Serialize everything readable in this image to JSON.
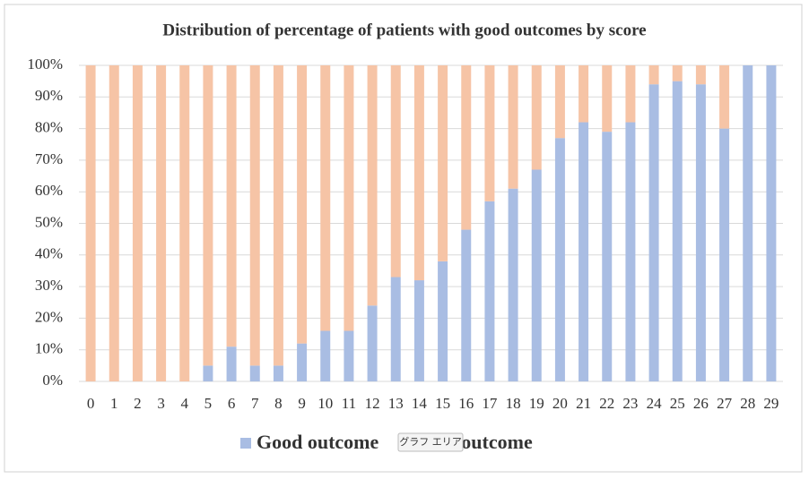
{
  "chart_data": {
    "type": "stacked_bar_percent",
    "title": "Distribution of percentage of patients with good outcomes by score",
    "categories": [
      "0",
      "1",
      "2",
      "3",
      "4",
      "5",
      "6",
      "7",
      "8",
      "9",
      "10",
      "11",
      "12",
      "13",
      "14",
      "15",
      "16",
      "17",
      "18",
      "19",
      "20",
      "21",
      "22",
      "23",
      "24",
      "25",
      "26",
      "27",
      "28",
      "29"
    ],
    "series": [
      {
        "name": "Good outcome",
        "color": "#a9bde3",
        "values": [
          0,
          0,
          0,
          0,
          0,
          5,
          11,
          5,
          5,
          12,
          16,
          16,
          24,
          33,
          32,
          38,
          48,
          57,
          61,
          67,
          77,
          82,
          79,
          82,
          94,
          95,
          94,
          80,
          100,
          100
        ]
      },
      {
        "name": "Poor outcome",
        "color": "#f6c4a6",
        "values": [
          100,
          100,
          100,
          100,
          100,
          95,
          89,
          95,
          95,
          88,
          84,
          84,
          76,
          67,
          68,
          62,
          52,
          43,
          39,
          33,
          23,
          18,
          21,
          18,
          6,
          5,
          6,
          20,
          0,
          0
        ]
      }
    ],
    "ylim": [
      0,
      100
    ],
    "yticks": [
      {
        "value": 0,
        "label": "0%"
      },
      {
        "value": 10,
        "label": "10%"
      },
      {
        "value": 20,
        "label": "20%"
      },
      {
        "value": 30,
        "label": "30%"
      },
      {
        "value": 40,
        "label": "40%"
      },
      {
        "value": 50,
        "label": "50%"
      },
      {
        "value": 60,
        "label": "60%"
      },
      {
        "value": 70,
        "label": "70%"
      },
      {
        "value": 80,
        "label": "80%"
      },
      {
        "value": 90,
        "label": "90%"
      },
      {
        "value": 100,
        "label": "100%"
      }
    ],
    "grid": true,
    "legend": "bottom",
    "tooltip": "グラフ エリア"
  }
}
